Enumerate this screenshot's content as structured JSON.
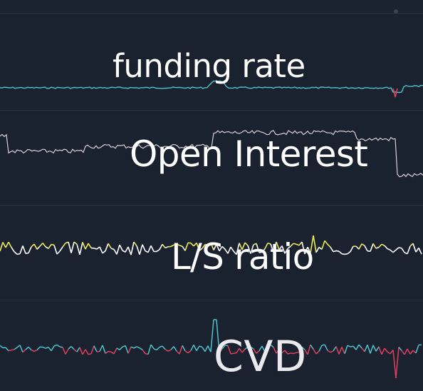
{
  "labels": {
    "funding_rate": "funding rate",
    "open_interest": "Open Interest",
    "ls_ratio": "L/S ratio",
    "cvd": "CVD"
  },
  "colors": {
    "background": "#1a212f",
    "divider": "#2c3444",
    "funding_line": "#4fc3c9",
    "funding_spike": "#e0405a",
    "oi_line": "#d9cfd8",
    "ls_high": "#ece85a",
    "ls_low": "#ffffff",
    "cvd_positive": "#4fc3c9",
    "cvd_negative": "#e0405a"
  }
}
